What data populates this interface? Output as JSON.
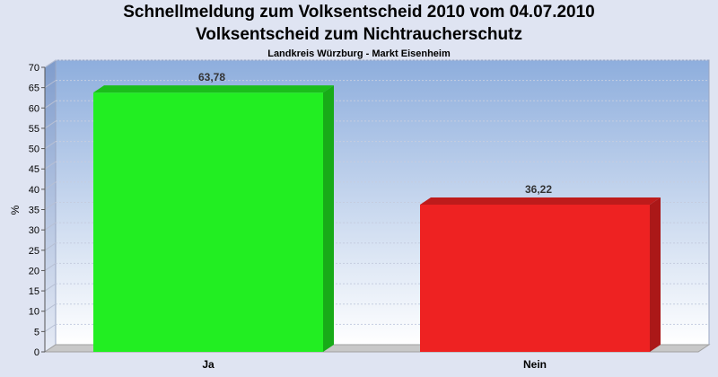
{
  "header": {
    "title_line1": "Schnellmeldung zum Volksentscheid 2010 vom 04.07.2010",
    "title_line2": "Volksentscheid zum Nichtraucherschutz",
    "subtitle": "Landkreis Würzburg - Markt Eisenheim"
  },
  "chart_data": {
    "type": "bar",
    "title": "Schnellmeldung zum Volksentscheid 2010 vom 04.07.2010",
    "subtitle": "Volksentscheid zum Nichtraucherschutz",
    "caption": "Landkreis Würzburg - Markt Eisenheim",
    "categories": [
      "Ja",
      "Nein"
    ],
    "values": [
      63.78,
      36.22
    ],
    "value_labels": [
      "63,78",
      "36,22"
    ],
    "bar_colors": [
      "#22ee22",
      "#ee2222"
    ],
    "xlabel": "",
    "ylabel": "%",
    "ylim": [
      0,
      70
    ],
    "yticks": [
      0,
      5,
      10,
      15,
      20,
      25,
      30,
      35,
      40,
      45,
      50,
      55,
      60,
      65,
      70
    ],
    "grid": true,
    "legend": "none",
    "three_d": true
  }
}
